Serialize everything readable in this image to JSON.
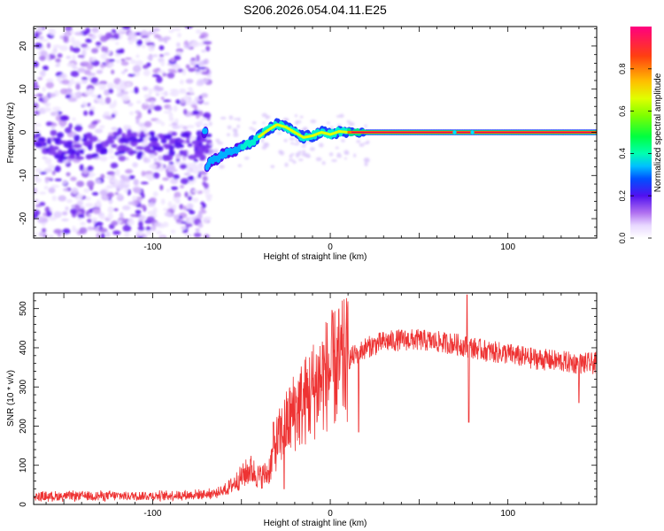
{
  "figure_title": "S206.2026.054.04.11.E25",
  "chart_data": [
    {
      "type": "heatmap",
      "xlabel": "Height of straight line (km)",
      "ylabel": "Frequency (Hz)",
      "xlim": [
        -167,
        150
      ],
      "ylim": [
        -24.5,
        24.5
      ],
      "x_ticks": [
        -100,
        0,
        100
      ],
      "y_ticks": [
        -20,
        -10,
        0,
        10,
        20
      ],
      "colorbar": {
        "label": "Normalized spectral amplitude",
        "range": [
          0,
          1
        ],
        "ticks": [
          0.0,
          0.2,
          0.4,
          0.6,
          0.8
        ],
        "colormap": [
          "#ffffff",
          "#b070f0",
          "#5010f0",
          "#0050ff",
          "#00e0ff",
          "#00ff60",
          "#40ff00",
          "#c0ff00",
          "#ffff00",
          "#ffb000",
          "#ff4000",
          "#ff0080"
        ]
      },
      "noise_region_x": [
        -167,
        -68
      ],
      "signal_track": [
        {
          "x": -70,
          "y": -8.5
        },
        {
          "x": -67,
          "y": -6.5
        },
        {
          "x": -63,
          "y": -6.0
        },
        {
          "x": -60,
          "y": -5.0
        },
        {
          "x": -55,
          "y": -4.5
        },
        {
          "x": -50,
          "y": -3.5
        },
        {
          "x": -45,
          "y": -2.5
        },
        {
          "x": -40,
          "y": -1.0
        },
        {
          "x": -35,
          "y": 0.5
        },
        {
          "x": -30,
          "y": 1.8
        },
        {
          "x": -25,
          "y": 1.2
        },
        {
          "x": -20,
          "y": 0.0
        },
        {
          "x": -15,
          "y": -1.2
        },
        {
          "x": -10,
          "y": -0.8
        },
        {
          "x": -5,
          "y": 0.0
        },
        {
          "x": 0,
          "y": -0.5
        },
        {
          "x": 5,
          "y": 0.2
        },
        {
          "x": 10,
          "y": 0.0
        },
        {
          "x": 20,
          "y": 0.0
        },
        {
          "x": 60,
          "y": 0.0
        },
        {
          "x": 100,
          "y": 0.0
        },
        {
          "x": 150,
          "y": 0.0
        }
      ]
    },
    {
      "type": "line",
      "xlabel": "Height of straight line (km)",
      "ylabel": "SNR (10 * v/v)",
      "xlim": [
        -167,
        150
      ],
      "ylim": [
        0,
        540
      ],
      "x_ticks": [
        -100,
        0,
        100
      ],
      "y_ticks": [
        0,
        100,
        200,
        300,
        400,
        500
      ],
      "series": [
        {
          "color": "#ee3333",
          "envelope": [
            {
              "x": -167,
              "y": 20
            },
            {
              "x": -140,
              "y": 22
            },
            {
              "x": -120,
              "y": 22
            },
            {
              "x": -100,
              "y": 22
            },
            {
              "x": -80,
              "y": 24
            },
            {
              "x": -65,
              "y": 28
            },
            {
              "x": -58,
              "y": 40
            },
            {
              "x": -50,
              "y": 70
            },
            {
              "x": -45,
              "y": 90
            },
            {
              "x": -40,
              "y": 70
            },
            {
              "x": -35,
              "y": 80
            },
            {
              "x": -30,
              "y": 160
            },
            {
              "x": -25,
              "y": 200
            },
            {
              "x": -20,
              "y": 240
            },
            {
              "x": -15,
              "y": 260
            },
            {
              "x": -10,
              "y": 290
            },
            {
              "x": -5,
              "y": 320
            },
            {
              "x": 0,
              "y": 340
            },
            {
              "x": 10,
              "y": 370
            },
            {
              "x": 20,
              "y": 400
            },
            {
              "x": 30,
              "y": 415
            },
            {
              "x": 40,
              "y": 420
            },
            {
              "x": 50,
              "y": 420
            },
            {
              "x": 60,
              "y": 415
            },
            {
              "x": 70,
              "y": 410
            },
            {
              "x": 80,
              "y": 400
            },
            {
              "x": 90,
              "y": 390
            },
            {
              "x": 100,
              "y": 385
            },
            {
              "x": 110,
              "y": 375
            },
            {
              "x": 120,
              "y": 370
            },
            {
              "x": 130,
              "y": 365
            },
            {
              "x": 140,
              "y": 360
            },
            {
              "x": 150,
              "y": 360
            }
          ],
          "spikes": [
            {
              "x": 77,
              "y": 535
            },
            {
              "x": 78,
              "y": 210
            },
            {
              "x": 16,
              "y": 185
            },
            {
              "x": -32,
              "y": 210
            },
            {
              "x": -26,
              "y": 40
            },
            {
              "x": 140,
              "y": 260
            }
          ]
        }
      ]
    }
  ]
}
